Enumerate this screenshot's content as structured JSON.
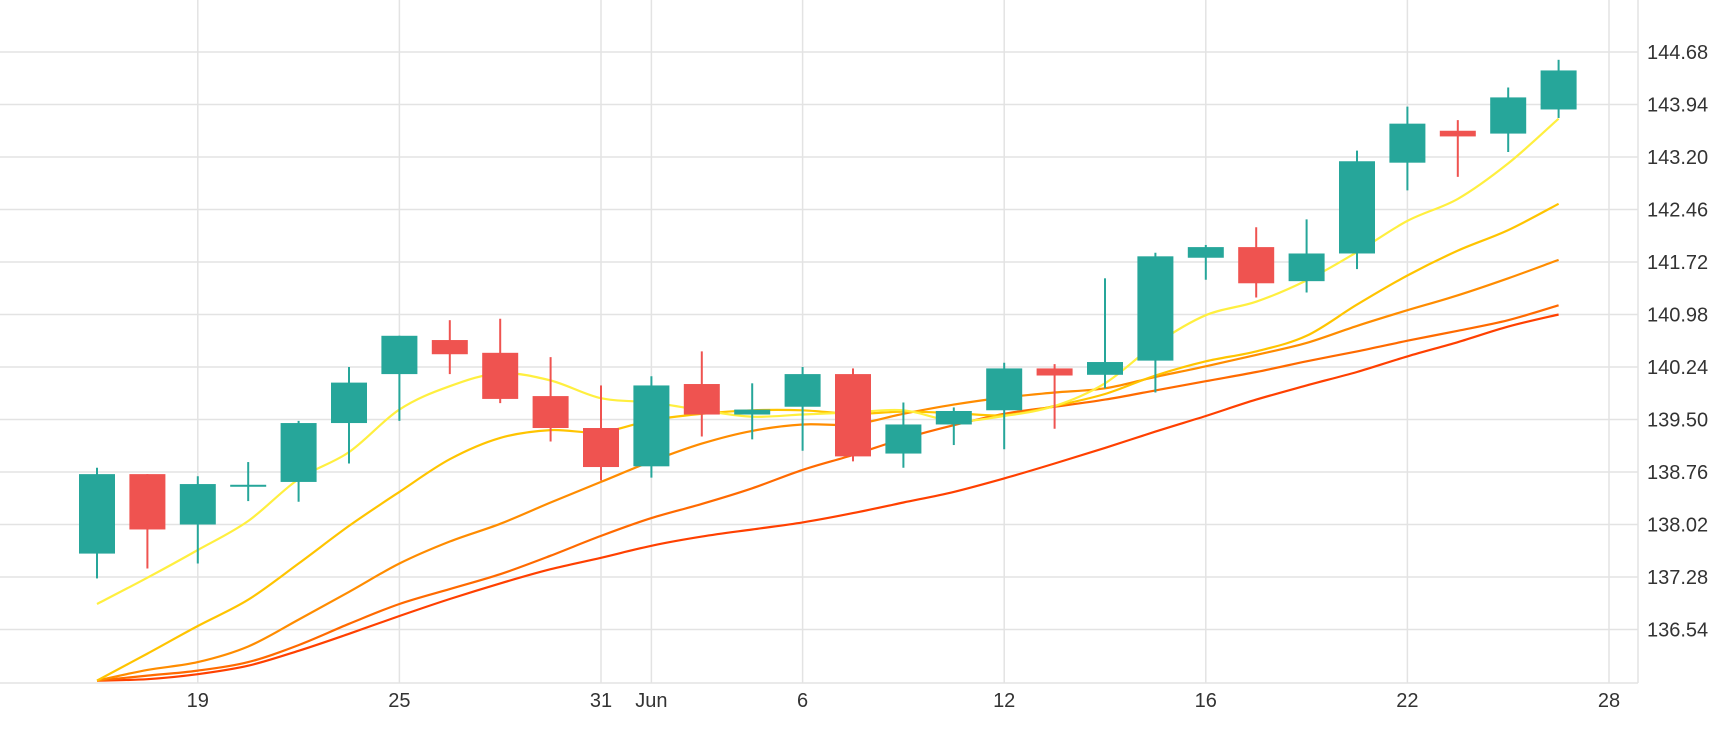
{
  "chart_data": {
    "type": "candlestick",
    "y_axis": {
      "position": "right",
      "ticks": [
        "136.54",
        "137.28",
        "138.02",
        "138.76",
        "139.50",
        "140.24",
        "140.98",
        "141.72",
        "142.46",
        "143.20",
        "143.94",
        "144.68"
      ],
      "range": [
        135.82,
        145.43
      ]
    },
    "x_axis": {
      "ticks": [
        {
          "label": "19",
          "index": 1
        },
        {
          "label": "25",
          "index": 5
        },
        {
          "label": "31",
          "index": 9
        },
        {
          "label": "Jun",
          "index": 10
        },
        {
          "label": "6",
          "index": 13
        },
        {
          "label": "12",
          "index": 17
        },
        {
          "label": "16",
          "index": 21
        },
        {
          "label": "22",
          "index": 25
        },
        {
          "label": "28",
          "index": 29
        }
      ]
    },
    "colors": {
      "up": "#26a69a",
      "down": "#ef5350"
    },
    "candles": [
      {
        "open": 137.61,
        "high": 138.82,
        "low": 137.26,
        "close": 138.73
      },
      {
        "open": 138.73,
        "high": 138.73,
        "low": 137.4,
        "close": 137.95
      },
      {
        "open": 138.02,
        "high": 138.7,
        "low": 137.47,
        "close": 138.59
      },
      {
        "open": 138.58,
        "high": 138.9,
        "low": 138.35,
        "close": 138.58
      },
      {
        "open": 138.62,
        "high": 139.48,
        "low": 138.34,
        "close": 139.45
      },
      {
        "open": 139.45,
        "high": 140.24,
        "low": 138.88,
        "close": 140.02
      },
      {
        "open": 140.14,
        "high": 140.68,
        "low": 139.48,
        "close": 140.68
      },
      {
        "open": 140.62,
        "high": 140.9,
        "low": 140.14,
        "close": 140.42
      },
      {
        "open": 140.44,
        "high": 140.92,
        "low": 139.73,
        "close": 139.79
      },
      {
        "open": 139.83,
        "high": 140.38,
        "low": 139.19,
        "close": 139.38
      },
      {
        "open": 139.38,
        "high": 139.98,
        "low": 138.64,
        "close": 138.83
      },
      {
        "open": 138.84,
        "high": 140.11,
        "low": 138.68,
        "close": 139.98
      },
      {
        "open": 140.0,
        "high": 140.46,
        "low": 139.26,
        "close": 139.57
      },
      {
        "open": 139.57,
        "high": 140.01,
        "low": 139.22,
        "close": 139.64
      },
      {
        "open": 139.68,
        "high": 140.24,
        "low": 139.06,
        "close": 140.14
      },
      {
        "open": 140.14,
        "high": 140.22,
        "low": 138.91,
        "close": 138.98
      },
      {
        "open": 139.02,
        "high": 139.74,
        "low": 138.82,
        "close": 139.43
      },
      {
        "open": 139.43,
        "high": 139.67,
        "low": 139.14,
        "close": 139.62
      },
      {
        "open": 139.63,
        "high": 140.3,
        "low": 139.08,
        "close": 140.22
      },
      {
        "open": 140.22,
        "high": 140.28,
        "low": 139.37,
        "close": 140.12
      },
      {
        "open": 140.13,
        "high": 141.49,
        "low": 139.94,
        "close": 140.31
      },
      {
        "open": 140.33,
        "high": 141.85,
        "low": 139.88,
        "close": 141.8
      },
      {
        "open": 141.78,
        "high": 141.96,
        "low": 141.47,
        "close": 141.93
      },
      {
        "open": 141.93,
        "high": 142.21,
        "low": 141.22,
        "close": 141.42
      },
      {
        "open": 141.45,
        "high": 142.32,
        "low": 141.29,
        "close": 141.84
      },
      {
        "open": 141.84,
        "high": 143.29,
        "low": 141.62,
        "close": 143.14
      },
      {
        "open": 143.12,
        "high": 143.91,
        "low": 142.73,
        "close": 143.67
      },
      {
        "open": 143.57,
        "high": 143.72,
        "low": 142.92,
        "close": 143.49
      },
      {
        "open": 143.53,
        "high": 144.18,
        "low": 143.27,
        "close": 144.04
      },
      {
        "open": 143.87,
        "high": 144.57,
        "low": 143.75,
        "close": 144.42
      }
    ],
    "moving_averages": [
      {
        "color": "#ffef3f",
        "values": [
          136.9,
          137.27,
          137.66,
          138.07,
          138.66,
          139.04,
          139.64,
          139.97,
          140.15,
          140.05,
          139.8,
          139.74,
          139.63,
          139.54,
          139.57,
          139.6,
          139.63,
          139.48,
          139.55,
          139.69,
          140.01,
          140.56,
          140.97,
          141.16,
          141.46,
          141.86,
          142.3,
          142.61,
          143.11,
          143.74
        ]
      },
      {
        "color": "#ffc400",
        "values": [
          135.82,
          136.2,
          136.59,
          136.96,
          137.47,
          138.0,
          138.48,
          138.94,
          139.24,
          139.35,
          139.32,
          139.49,
          139.58,
          139.63,
          139.63,
          139.58,
          139.61,
          139.59,
          139.56,
          139.69,
          139.86,
          140.12,
          140.32,
          140.46,
          140.68,
          141.12,
          141.53,
          141.88,
          142.17,
          142.54
        ]
      },
      {
        "color": "#ff8c00",
        "values": [
          135.82,
          135.97,
          136.08,
          136.3,
          136.68,
          137.07,
          137.47,
          137.78,
          138.03,
          138.33,
          138.62,
          138.91,
          139.16,
          139.34,
          139.43,
          139.43,
          139.58,
          139.71,
          139.81,
          139.88,
          139.94,
          140.1,
          140.25,
          140.41,
          140.58,
          140.82,
          141.04,
          141.25,
          141.49,
          141.75
        ]
      },
      {
        "color": "#ff6a00",
        "values": [
          135.82,
          135.89,
          135.96,
          136.08,
          136.32,
          136.62,
          136.9,
          137.11,
          137.32,
          137.58,
          137.86,
          138.11,
          138.31,
          138.53,
          138.79,
          139.0,
          139.23,
          139.42,
          139.58,
          139.68,
          139.78,
          139.91,
          140.04,
          140.17,
          140.32,
          140.46,
          140.61,
          140.75,
          140.9,
          141.11
        ]
      },
      {
        "color": "#ff4000",
        "values": [
          135.82,
          135.84,
          135.91,
          136.03,
          136.24,
          136.48,
          136.73,
          136.97,
          137.19,
          137.39,
          137.55,
          137.72,
          137.85,
          137.95,
          138.05,
          138.18,
          138.33,
          138.48,
          138.67,
          138.88,
          139.1,
          139.33,
          139.55,
          139.78,
          139.98,
          140.17,
          140.39,
          140.59,
          140.81,
          140.98
        ]
      }
    ]
  }
}
